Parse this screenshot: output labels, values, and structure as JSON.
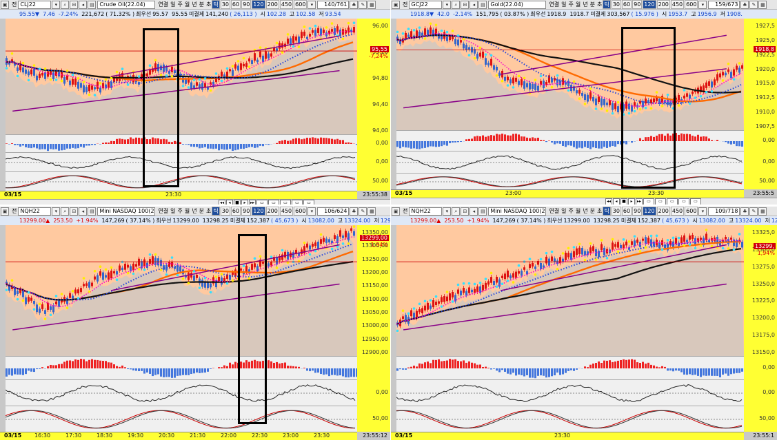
{
  "periods": [
    "30",
    "60",
    "90",
    "120",
    "200",
    "450",
    "600",
    "120"
  ],
  "tick_label": "틱",
  "chart_toolbar": {
    "chart_type_label": "연결",
    "day_label": "일",
    "week_label": "주",
    "month_label": "월",
    "year_label": "년",
    "minute_label": "분",
    "second_label": "초",
    "prefix_label": "전"
  },
  "panels": [
    {
      "symbol": "CLJ22",
      "name": "Crude Oil(22.04)",
      "count": "140",
      "total": "761",
      "quote": {
        "price": "95.55▼",
        "change": "7.46",
        "pct": "-7.24%",
        "volume": "221,672",
        "vol_pct": "( 71.32% )",
        "best_label": "최우선",
        "best": "95.57",
        "bid": "95.55",
        "oi_label": "미결제",
        "oi": "141,240",
        "oi_chg": "( 26,113 )",
        "open_label": "시",
        "open": "102.28",
        "high_label": "고",
        "high": "102.58",
        "low_label": "저",
        "low": "93.54"
      },
      "price_axis": [
        "96,00",
        "95,20",
        "94,80",
        "94,40",
        "94,00"
      ],
      "current_price": "95,55",
      "current_pct": "-7,24%",
      "ind_axis": [
        "0,00",
        "0,00",
        "50,00"
      ],
      "date": "03/15",
      "time_labels": [
        "23:30"
      ],
      "clock": "23:55:38"
    },
    {
      "symbol": "GCJ22",
      "name": "Gold(22.04)",
      "count": "159",
      "total": "673",
      "quote": {
        "price": "1918.8▼",
        "change": "42.0",
        "pct": "-2.14%",
        "volume": "151,795",
        "vol_pct": "( 03.87% )",
        "best_label": "최우선",
        "best": "1918.9",
        "bid": "1918.7",
        "oi_label": "미결제",
        "oi": "303,567",
        "oi_chg": "( 15.976 )",
        "open_label": "시",
        "open": "1953.7",
        "high_label": "고",
        "high": "1956.9",
        "low_label": "저",
        "low": "1908."
      },
      "price_axis": [
        "1927,5",
        "1925,0",
        "1922,5",
        "1920,0",
        "1915,0",
        "1912,5",
        "1910,0",
        "1907,5"
      ],
      "current_price": "1918,8",
      "current_pct": "",
      "ind_axis": [
        "0,00",
        "0,00",
        "50,00"
      ],
      "date": "03/15",
      "time_labels": [
        "23:00",
        "23:30"
      ],
      "clock": "23:55:5"
    },
    {
      "symbol": "NQH22",
      "name": "Mini NASDAQ 100(22.0",
      "count": "106",
      "total": "624",
      "quote": {
        "price": "13299.00▲",
        "change": "253.50",
        "pct": "+1.94%",
        "volume": "147,269",
        "vol_pct": "( 37.14% )",
        "best_label": "최우선",
        "best": "13299.00",
        "bid": "13298.25",
        "oi_label": "미결제",
        "oi": "152,387",
        "oi_chg": "( 45,673 )",
        "open_label": "시",
        "open": "13082.00",
        "high_label": "고",
        "high": "13324.00",
        "low_label": "저",
        "low": "12944."
      },
      "price_axis": [
        "13350,00",
        "13300,00",
        "13250,00",
        "13200,00",
        "13150,00",
        "13100,00",
        "13050,00",
        "13000,00",
        "12950,00",
        "12900,00"
      ],
      "current_price": "13299,00",
      "current_pct": "1,94%",
      "ind_axis": [
        "0,00",
        "50,00"
      ],
      "date": "03/15",
      "time_labels": [
        "16:30",
        "17:30",
        "18:30",
        "19:30",
        "20:30",
        "21:30",
        "22:00",
        "22:30",
        "23:00",
        "23:30"
      ],
      "clock": "23:55:12"
    },
    {
      "symbol": "NQH22",
      "name": "Mini NASDAQ 100(22.0",
      "count": "109",
      "total": "718",
      "quote": {
        "price": "13299.00▲",
        "change": "253.50",
        "pct": "+1.94%",
        "volume": "147,269",
        "vol_pct": "( 37.14% )",
        "best_label": "최우선",
        "best": "13299.00",
        "bid": "13298.25",
        "oi_label": "미결제",
        "oi": "152,387",
        "oi_chg": "( 45,673 )",
        "open_label": "시",
        "open": "13082.00",
        "high_label": "고",
        "high": "13324.00",
        "low_label": "저",
        "low": "12944"
      },
      "price_axis": [
        "13325,0",
        "13300,0",
        "13275,0",
        "13250,0",
        "13225,0",
        "13200,0",
        "13175,0",
        "13150,0"
      ],
      "current_price": "13299,",
      "current_pct": "1,94%",
      "ind_axis": [
        "0,00",
        "0,00",
        "50,00"
      ],
      "date": "03/15",
      "time_labels": [
        "23:30"
      ],
      "clock": "23:55:1"
    }
  ],
  "colors": {
    "plot_bg": "#ffc9a0",
    "axis_bg": "#ffff33",
    "up": "#dd1111",
    "down": "#3366cc",
    "highlight_box": "#000000"
  }
}
